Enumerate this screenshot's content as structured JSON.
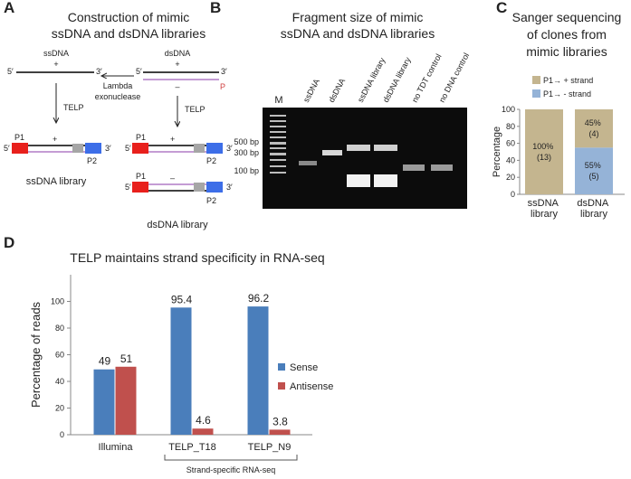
{
  "panels": {
    "A": {
      "letter": "A",
      "title": [
        "Construction of mimic",
        "ssDNA and dsDNA libraries"
      ],
      "labels": [
        "ssDNA",
        "5′",
        "+",
        "3′",
        "dsDNA",
        "5′",
        "+",
        "3′",
        "–",
        "P",
        "Lambda",
        "exonuclease",
        "TELP",
        "TELP",
        "P1",
        "+",
        "5′",
        "3′",
        "P2",
        "ssDNA library",
        "P1",
        "+",
        "5′",
        "3′",
        "P1",
        "–",
        "5′",
        "3′",
        "P2",
        "P2",
        "dsDNA library"
      ]
    },
    "B": {
      "letter": "B",
      "title": [
        "Fragment size of mimic",
        "ssDNA and dsDNA libraries"
      ],
      "lanes": [
        "M",
        "ssDNA",
        "dsDNA",
        "ssDNA library",
        "dsDNA library",
        "no TDT control",
        "no DNA control"
      ],
      "markers": [
        "500 bp",
        "300 bp",
        "100 bp"
      ]
    }
  },
  "chart_data": [
    {
      "type": "stacked-bar",
      "letter": "C",
      "title": [
        "Sanger sequencing",
        "of clones from",
        "mimic libraries"
      ],
      "categories": [
        "ssDNA library",
        "dsDNA library"
      ],
      "ylabel": "Percentage",
      "ylim": [
        0,
        100
      ],
      "yticks": [
        0,
        20,
        40,
        60,
        80,
        100
      ],
      "series": [
        {
          "name": "P1→ - strand",
          "color": "#95b3d7",
          "values": [
            0,
            55
          ],
          "value_labels": [
            null,
            "55% (5)"
          ]
        },
        {
          "name": "P1→ + strand",
          "color": "#c4b58f",
          "values": [
            100,
            45
          ],
          "value_labels": [
            "100% (13)",
            "45% (4)"
          ]
        }
      ]
    },
    {
      "type": "grouped-bar",
      "letter": "D",
      "title": "TELP maintains strand specificity in RNA-seq",
      "categories": [
        "Illumina",
        "TELP_T18",
        "TELP_N9"
      ],
      "ylabel": "Percentage of reads",
      "annotation": "Strand-specific RNA-seq",
      "ylim": [
        0,
        120
      ],
      "yticks": [
        0,
        20,
        40,
        60,
        80,
        100
      ],
      "series": [
        {
          "name": "Sense",
          "color": "#4a7ebb",
          "values": [
            49,
            95.4,
            96.2
          ]
        },
        {
          "name": "Antisense",
          "color": "#c0504d",
          "values": [
            51,
            4.6,
            3.8
          ]
        }
      ]
    }
  ]
}
